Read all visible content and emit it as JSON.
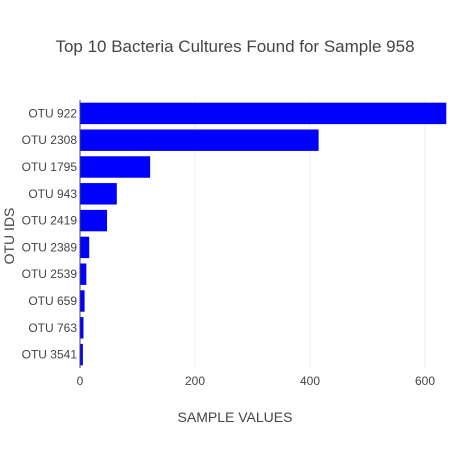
{
  "chart_data": {
    "type": "bar",
    "orientation": "horizontal",
    "title": "Top 10 Bacteria Cultures Found for Sample 958",
    "xlabel": "SAMPLE VALUES",
    "ylabel": "OTU IDS",
    "xlim": [
      0,
      640
    ],
    "xticks": [
      0,
      200,
      400,
      600
    ],
    "grid": true,
    "bar_color": "#0000ff",
    "categories": [
      "OTU 922",
      "OTU 2308",
      "OTU 1795",
      "OTU 943",
      "OTU 2419",
      "OTU 2389",
      "OTU 2539",
      "OTU 659",
      "OTU 763",
      "OTU 3541"
    ],
    "values": [
      637,
      415,
      122,
      64,
      47,
      16,
      11,
      8,
      6,
      5
    ]
  }
}
